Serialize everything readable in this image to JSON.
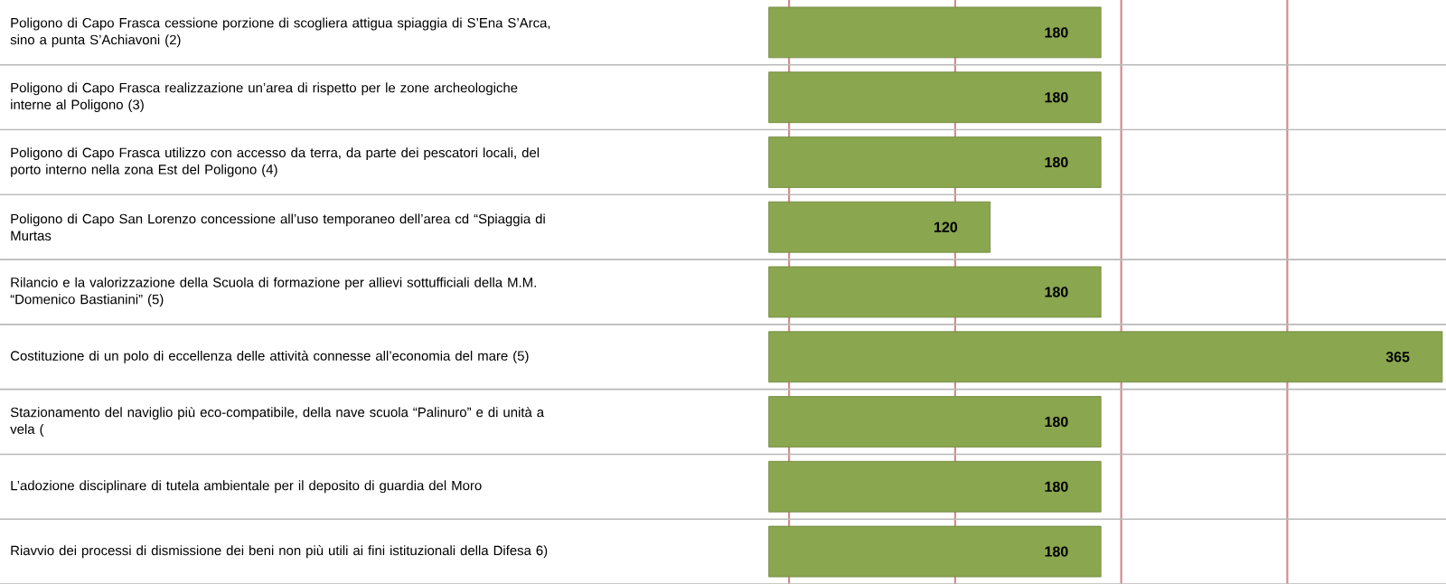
{
  "chart_data": {
    "type": "bar",
    "orientation": "horizontal",
    "categories": [
      "Poligono di Capo Frasca cessione porzione di scogliera attigua spiaggia di S’Ena S’Arca, sino a punta S’Achiavoni (2)",
      "Poligono di Capo Frasca realizzazione un’area di rispetto per le zone archeologiche interne al Poligono (3)",
      "Poligono di Capo Frasca utilizzo con accesso da terra, da parte dei pescatori locali, del porto interno nella zona Est del Poligono (4)",
      "Poligono di Capo San Lorenzo concessione all’uso temporaneo dell’area cd “Spiaggia di Murtas",
      "Rilancio e la valorizzazione della Scuola di formazione per allievi sottufficiali della M.M. “Domenico Bastianini” (5)",
      "Costituzione di un polo di eccellenza delle attività connesse all’economia del mare (5)",
      "Stazionamento del naviglio più eco-compatibile, della nave scuola “Palinuro” e di unità a vela (",
      "L’adozione disciplinare di tutela ambientale per il deposito di guardia del Moro",
      "Riavvio dei processi di dismissione dei beni non più utili ai fini istituzionali della Difesa 6)"
    ],
    "values": [
      180,
      180,
      180,
      120,
      180,
      365,
      180,
      180,
      180
    ],
    "color": "#8aa64e",
    "xlim": [
      0,
      367
    ],
    "xticks": [
      {
        "value": 11,
        "label": null
      },
      {
        "value": 101,
        "label": null
      },
      {
        "value": 191,
        "label": null
      },
      {
        "value": 281,
        "label": null
      }
    ],
    "grid": "x",
    "data_labels": true
  }
}
